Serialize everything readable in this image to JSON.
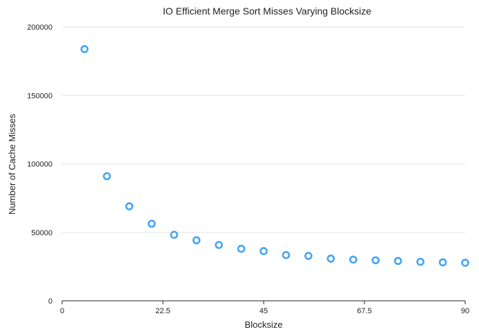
{
  "chart_data": {
    "type": "scatter",
    "title": "IO Efficient Merge Sort Misses Varying Blocksize",
    "xlabel": "Blocksize",
    "ylabel": "Number of Cache Misses",
    "xlim": [
      0,
      90
    ],
    "ylim": [
      0,
      200000
    ],
    "x_ticks": [
      0,
      22.5,
      45,
      67.5,
      90
    ],
    "x_tick_labels": [
      "0",
      "22.5",
      "45",
      "67.5",
      "90"
    ],
    "y_ticks": [
      0,
      50000,
      100000,
      150000,
      200000
    ],
    "y_tick_labels": [
      "0",
      "50000",
      "100000",
      "150000",
      "200000"
    ],
    "grid": "horizontal",
    "legend": "none",
    "marker_color": "#42a5f5",
    "series": [
      {
        "x": [
          5,
          10,
          15,
          20,
          25,
          30,
          35,
          40,
          45,
          50,
          55,
          60,
          65,
          70,
          75,
          80,
          85,
          90
        ],
        "y": [
          183800,
          91000,
          69000,
          56300,
          48200,
          44200,
          40800,
          38000,
          36300,
          33400,
          32800,
          30800,
          30100,
          29600,
          29100,
          28500,
          28100,
          27800
        ]
      }
    ]
  }
}
